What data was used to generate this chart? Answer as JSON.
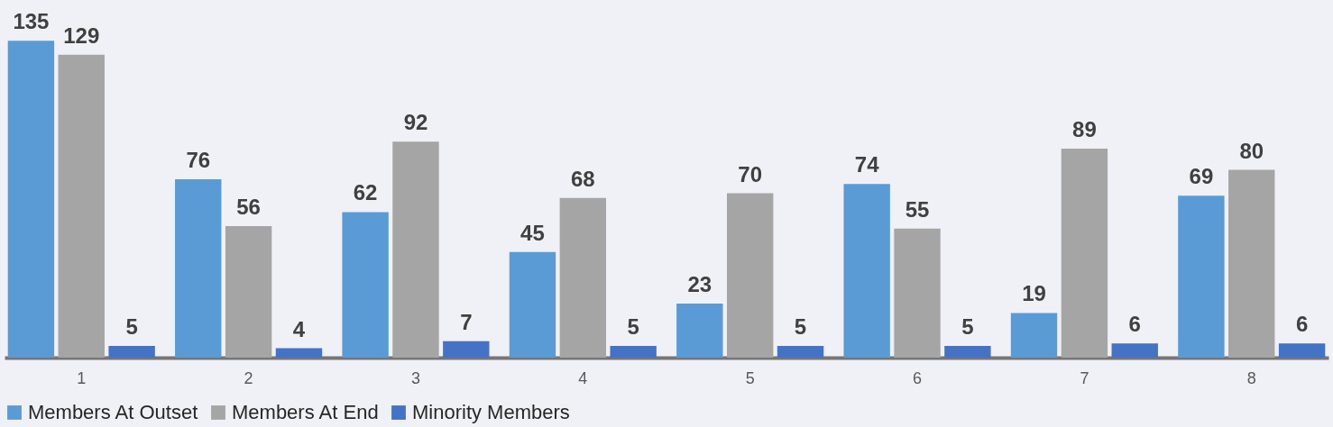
{
  "chart_data": {
    "type": "bar",
    "categories": [
      "1",
      "2",
      "3",
      "4",
      "5",
      "6",
      "7",
      "8"
    ],
    "series": [
      {
        "name": "Members At Outset",
        "color": "#5b9bd5",
        "values": [
          135,
          76,
          62,
          45,
          23,
          74,
          19,
          69
        ]
      },
      {
        "name": "Members At End",
        "color": "#a5a5a5",
        "values": [
          129,
          56,
          92,
          68,
          70,
          55,
          89,
          80
        ]
      },
      {
        "name": "Minority Members",
        "color": "#4472c4",
        "values": [
          5,
          4,
          7,
          5,
          5,
          5,
          6,
          6
        ]
      }
    ],
    "data_labels": true,
    "legend": "bottom",
    "grid": false
  }
}
